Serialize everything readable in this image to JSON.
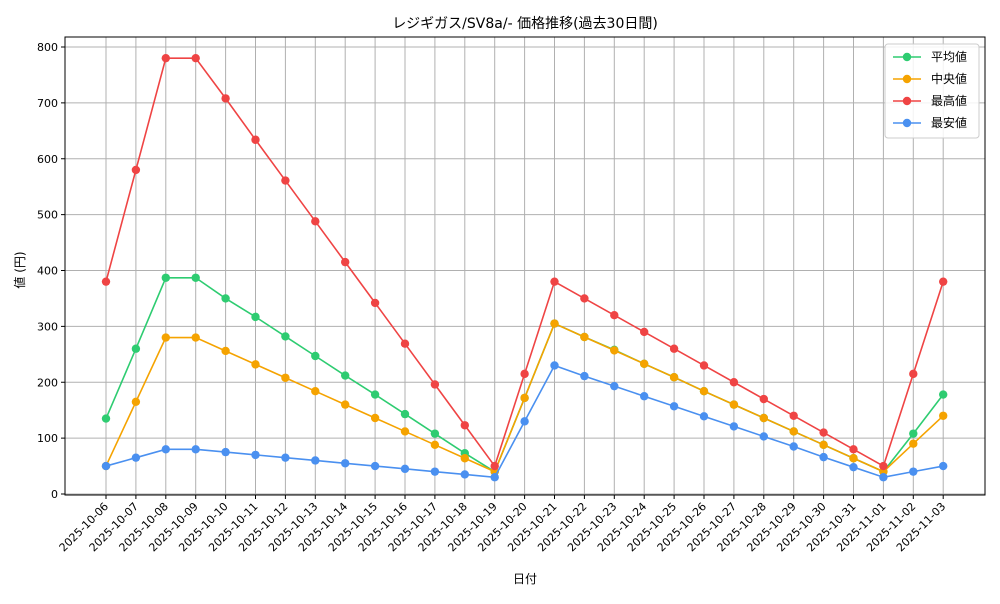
{
  "chart_data": {
    "type": "line",
    "title": "レジギガス/SV8a/- 価格推移(過去30日間)",
    "xlabel": "日付",
    "ylabel": "値 (円)",
    "ylim": [
      0,
      800
    ],
    "yticks": [
      0,
      100,
      200,
      300,
      400,
      500,
      600,
      700,
      800
    ],
    "grid": true,
    "legend_position": "top-right",
    "categories": [
      "2025-10-06",
      "2025-10-07",
      "2025-10-08",
      "2025-10-09",
      "2025-10-10",
      "2025-10-11",
      "2025-10-12",
      "2025-10-13",
      "2025-10-14",
      "2025-10-15",
      "2025-10-16",
      "2025-10-17",
      "2025-10-18",
      "2025-10-19",
      "2025-10-20",
      "2025-10-21",
      "2025-10-22",
      "2025-10-23",
      "2025-10-24",
      "2025-10-25",
      "2025-10-26",
      "2025-10-27",
      "2025-10-28",
      "2025-10-29",
      "2025-10-30",
      "2025-10-31",
      "2025-11-01",
      "2025-11-02",
      "2025-11-03"
    ],
    "series": [
      {
        "name": "平均値",
        "color": "#2ecc71",
        "values": [
          135,
          260,
          387,
          387,
          350,
          317,
          282,
          247,
          212,
          178,
          143,
          108,
          73,
          40,
          172,
          305,
          281,
          258,
          233,
          209,
          184,
          160,
          136,
          112,
          88,
          64,
          40,
          108,
          178
        ]
      },
      {
        "name": "中央値",
        "color": "#f5a300",
        "values": [
          50,
          165,
          280,
          280,
          256,
          232,
          208,
          184,
          160,
          136,
          112,
          88,
          64,
          40,
          172,
          305,
          281,
          257,
          233,
          209,
          184,
          160,
          136,
          112,
          88,
          64,
          40,
          90,
          140
        ]
      },
      {
        "name": "最高値",
        "color": "#ef4444",
        "values": [
          380,
          580,
          780,
          780,
          708,
          634,
          561,
          488,
          415,
          342,
          269,
          196,
          123,
          50,
          215,
          380,
          350,
          320,
          290,
          260,
          230,
          200,
          170,
          140,
          110,
          80,
          50,
          215,
          380
        ]
      },
      {
        "name": "最安値",
        "color": "#4a90f0",
        "values": [
          50,
          65,
          80,
          80,
          75,
          70,
          65,
          60,
          55,
          50,
          45,
          40,
          35,
          30,
          130,
          230,
          211,
          193,
          175,
          157,
          139,
          121,
          103,
          85,
          66,
          48,
          30,
          40,
          50
        ]
      }
    ]
  }
}
